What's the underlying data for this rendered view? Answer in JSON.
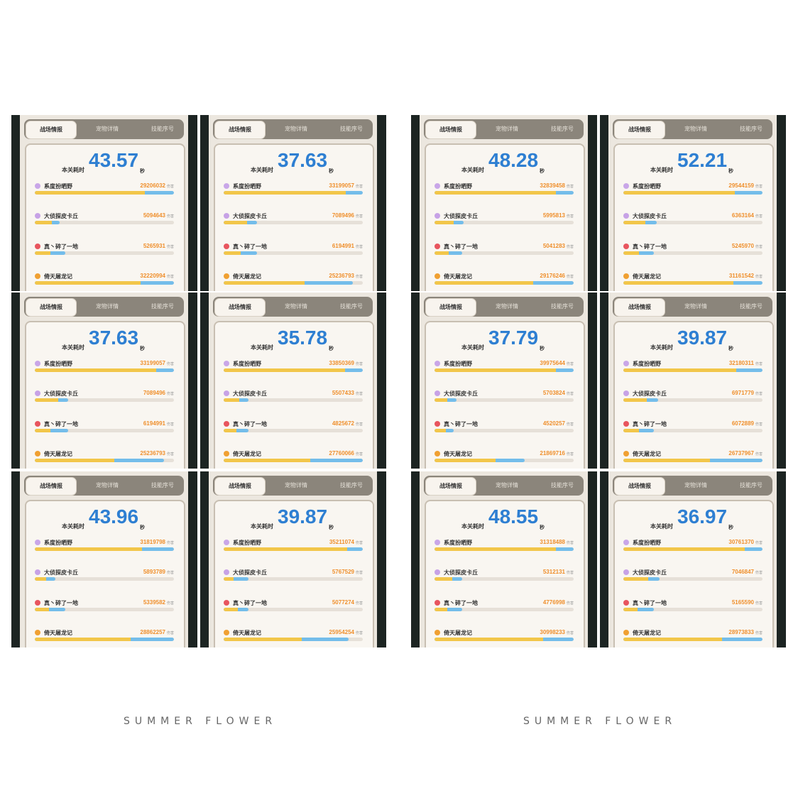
{
  "tabs": [
    "战场情报",
    "宠物详情",
    "技能序号"
  ],
  "time_label": "本关耗时",
  "sec_label": "秒",
  "damage_unit": "伤害",
  "players": [
    {
      "name": "系度扮晒野",
      "icon": "purple-swirl-icon",
      "color": "#c9a6e8"
    },
    {
      "name": "大侦探皮卡丘",
      "icon": "purple-pet-icon",
      "color": "#c7a2e6"
    },
    {
      "name": "真丶碎了一地",
      "icon": "red-crab-icon",
      "color": "#e8555e"
    },
    {
      "name": "倚天屠龙记",
      "icon": "orange-dragon-icon",
      "color": "#f0a032"
    }
  ],
  "colors": {
    "time": "#2e7fd2",
    "damage": "#ef8f2c",
    "bar_primary": "#f2c64a",
    "bar_secondary": "#74bdea"
  },
  "panels": [
    {
      "time": "43.57",
      "rows": [
        {
          "value": "29206032",
          "y": 79,
          "t": 100
        },
        {
          "value": "5094643",
          "y": 12,
          "t": 18
        },
        {
          "value": "5265931",
          "y": 11,
          "t": 22
        },
        {
          "value": "32220994",
          "y": 76,
          "t": 100
        }
      ]
    },
    {
      "time": "37.63",
      "rows": [
        {
          "value": "33199057",
          "y": 88,
          "t": 100
        },
        {
          "value": "7089496",
          "y": 17,
          "t": 24
        },
        {
          "value": "6194991",
          "y": 12,
          "t": 24
        },
        {
          "value": "25236793",
          "y": 58,
          "t": 93
        }
      ]
    },
    {
      "time": "48.28",
      "rows": [
        {
          "value": "32839458",
          "y": 87,
          "t": 100
        },
        {
          "value": "5995813",
          "y": 14,
          "t": 21
        },
        {
          "value": "5041283",
          "y": 10,
          "t": 20
        },
        {
          "value": "29176246",
          "y": 71,
          "t": 100
        }
      ]
    },
    {
      "time": "52.21",
      "rows": [
        {
          "value": "29544159",
          "y": 80,
          "t": 100
        },
        {
          "value": "6363164",
          "y": 16,
          "t": 24
        },
        {
          "value": "5245970",
          "y": 11,
          "t": 22
        },
        {
          "value": "31161542",
          "y": 79,
          "t": 100
        }
      ]
    },
    {
      "time": "37.63",
      "rows": [
        {
          "value": "33199057",
          "y": 87,
          "t": 100
        },
        {
          "value": "7089496",
          "y": 17,
          "t": 24
        },
        {
          "value": "6194991",
          "y": 11,
          "t": 24
        },
        {
          "value": "25236793",
          "y": 57,
          "t": 93
        }
      ]
    },
    {
      "time": "35.78",
      "rows": [
        {
          "value": "33850369",
          "y": 87,
          "t": 100
        },
        {
          "value": "5507433",
          "y": 11,
          "t": 18
        },
        {
          "value": "4825672",
          "y": 9,
          "t": 18
        },
        {
          "value": "27760066",
          "y": 62,
          "t": 100
        }
      ]
    },
    {
      "time": "37.79",
      "rows": [
        {
          "value": "39975644",
          "y": 87,
          "t": 100
        },
        {
          "value": "5703824",
          "y": 9,
          "t": 16
        },
        {
          "value": "4520257",
          "y": 8,
          "t": 14
        },
        {
          "value": "21869716",
          "y": 44,
          "t": 65
        }
      ]
    },
    {
      "time": "39.87",
      "rows": [
        {
          "value": "32180311",
          "y": 81,
          "t": 100
        },
        {
          "value": "6971779",
          "y": 17,
          "t": 25
        },
        {
          "value": "6072889",
          "y": 11,
          "t": 22
        },
        {
          "value": "26737967",
          "y": 62,
          "t": 100
        }
      ]
    },
    {
      "time": "43.96",
      "rows": [
        {
          "value": "31819798",
          "y": 77,
          "t": 100
        },
        {
          "value": "5893789",
          "y": 8,
          "t": 15
        },
        {
          "value": "5339582",
          "y": 10,
          "t": 22
        },
        {
          "value": "28862257",
          "y": 69,
          "t": 100
        }
      ]
    },
    {
      "time": "39.87",
      "rows": [
        {
          "value": "35211074",
          "y": 89,
          "t": 100
        },
        {
          "value": "5767529",
          "y": 7,
          "t": 18
        },
        {
          "value": "5077274",
          "y": 10,
          "t": 18
        },
        {
          "value": "25954254",
          "y": 56,
          "t": 90
        }
      ]
    },
    {
      "time": "48.55",
      "rows": [
        {
          "value": "31318488",
          "y": 87,
          "t": 100
        },
        {
          "value": "5312131",
          "y": 13,
          "t": 20
        },
        {
          "value": "4776998",
          "y": 9,
          "t": 20
        },
        {
          "value": "30998233",
          "y": 78,
          "t": 100
        }
      ]
    },
    {
      "time": "36.97",
      "rows": [
        {
          "value": "30761370",
          "y": 87,
          "t": 100
        },
        {
          "value": "7046847",
          "y": 18,
          "t": 26
        },
        {
          "value": "5165590",
          "y": 10,
          "t": 22
        },
        {
          "value": "28973833",
          "y": 71,
          "t": 100
        }
      ]
    }
  ],
  "footer": [
    "SUMMER FLOWER",
    "SUMMER FLOWER"
  ]
}
